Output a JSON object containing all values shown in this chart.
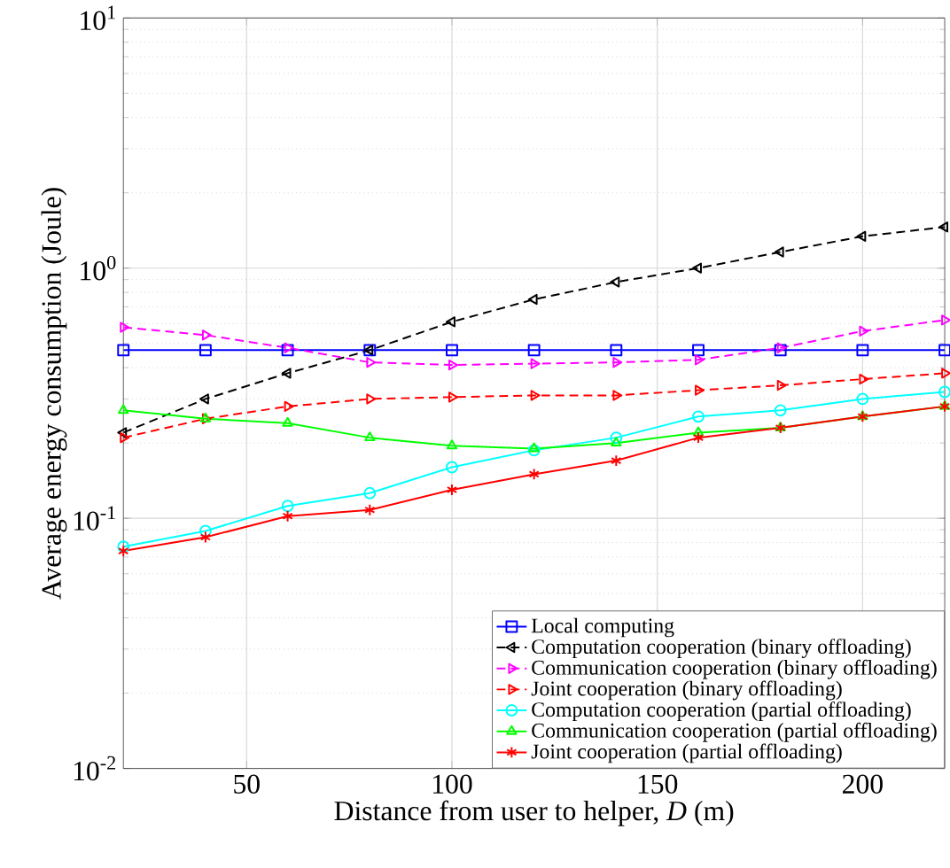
{
  "chart_data": {
    "type": "line",
    "xlabel": "Distance from user to helper, *D* (m)",
    "ylabel": "Average energy consumption (Joule)",
    "x": [
      20,
      40,
      60,
      80,
      100,
      120,
      140,
      160,
      180,
      200,
      220
    ],
    "xlim": [
      20,
      220
    ],
    "xticks": [
      50,
      100,
      150,
      200
    ],
    "ylim": [
      0.01,
      10
    ],
    "yticks": [
      {
        "value": 0.01,
        "label": "10$^{-2}$"
      },
      {
        "value": 0.1,
        "label": "10$^{-1}$"
      },
      {
        "value": 1,
        "label": "10$^{0}$"
      },
      {
        "value": 10,
        "label": "10$^{1}$"
      }
    ],
    "log": "y",
    "grid": true,
    "legend": "bottom right",
    "series": [
      {
        "name": "Local computing",
        "color": "#0000ff",
        "marker": "square",
        "line_style": "solid",
        "values": [
          0.47,
          0.47,
          0.47,
          0.47,
          0.47,
          0.47,
          0.47,
          0.47,
          0.47,
          0.47,
          0.47
        ]
      },
      {
        "name": "Computation cooperation (binary offloading)",
        "color": "#000000",
        "marker": "triangle-left",
        "line_style": "dashed",
        "values": [
          0.22,
          0.3,
          0.38,
          0.47,
          0.61,
          0.75,
          0.88,
          1.0,
          1.16,
          1.34,
          1.46
        ]
      },
      {
        "name": "Communication cooperation (binary offloading)",
        "color": "#ff00ff",
        "marker": "triangle-right",
        "line_style": "dashed",
        "values": [
          0.58,
          0.54,
          0.48,
          0.42,
          0.41,
          0.415,
          0.42,
          0.43,
          0.48,
          0.56,
          0.62
        ]
      },
      {
        "name": "Joint cooperation (binary offloading)",
        "color": "#ff0000",
        "marker": "triangle-right",
        "line_style": "dashed",
        "values": [
          0.21,
          0.25,
          0.28,
          0.3,
          0.305,
          0.31,
          0.31,
          0.325,
          0.34,
          0.36,
          0.38
        ]
      },
      {
        "name": "Computation cooperation (partial offloading)",
        "color": "#00ffff",
        "marker": "circle",
        "line_style": "solid",
        "values": [
          0.077,
          0.089,
          0.112,
          0.126,
          0.16,
          0.187,
          0.21,
          0.255,
          0.27,
          0.3,
          0.32
        ]
      },
      {
        "name": "Communication cooperation (partial offloading)",
        "color": "#00ff00",
        "marker": "triangle",
        "line_style": "solid",
        "values": [
          0.27,
          0.25,
          0.24,
          0.21,
          0.195,
          0.19,
          0.2,
          0.22,
          0.23,
          0.255,
          0.28
        ]
      },
      {
        "name": "Joint cooperation (partial offloading)",
        "color": "#ff0000",
        "marker": "cross",
        "line_style": "solid",
        "values": [
          0.074,
          0.084,
          0.102,
          0.108,
          0.13,
          0.15,
          0.17,
          0.21,
          0.23,
          0.255,
          0.28
        ]
      }
    ]
  }
}
